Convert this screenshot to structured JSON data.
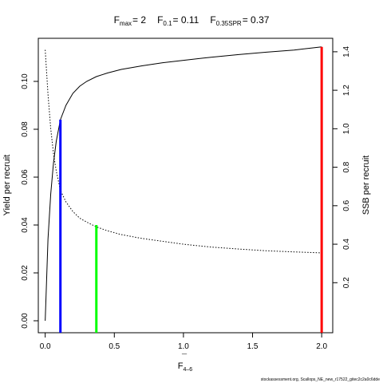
{
  "chart_data": {
    "type": "line",
    "title": {
      "fmax_label": "F",
      "fmax_sub": "max",
      "fmax_value": "= 2",
      "f01_label": "F",
      "f01_sub": "0.1",
      "f01_value": "= 0.11",
      "fspr_label": "F",
      "fspr_sub": "0.35SPR",
      "fspr_value": "= 0.37"
    },
    "xlabel": "F",
    "xlabel_bar": "¯",
    "xlabel_sub": "4–6",
    "ylabel": "Yield per recruit",
    "y2label": "SSB per recruit",
    "xlim": [
      -0.05,
      2.08
    ],
    "ylim": [
      -0.005,
      0.118
    ],
    "y2lim": [
      -0.06,
      1.47
    ],
    "x_ticks": [
      0.0,
      0.5,
      1.0,
      1.5,
      2.0
    ],
    "x_tick_labels": [
      "0.0",
      "0.5",
      "1.0",
      "1.5",
      "2.0"
    ],
    "y_ticks": [
      0.0,
      0.02,
      0.04,
      0.06,
      0.08,
      0.1
    ],
    "y_tick_labels": [
      "0.00",
      "0.02",
      "0.04",
      "0.06",
      "0.08",
      "0.10"
    ],
    "y2_ticks": [
      0.2,
      0.4,
      0.6,
      0.8,
      1.0,
      1.2,
      1.4
    ],
    "y2_tick_labels": [
      "0.2",
      "0.4",
      "0.6",
      "0.8",
      "1.0",
      "1.2",
      "1.4"
    ],
    "series": [
      {
        "style": "solid",
        "axis": "left",
        "x": [
          0.0,
          0.02,
          0.04,
          0.06,
          0.08,
          0.11,
          0.15,
          0.2,
          0.25,
          0.3,
          0.37,
          0.45,
          0.55,
          0.7,
          0.85,
          1.0,
          1.2,
          1.4,
          1.6,
          1.8,
          2.0
        ],
        "values": [
          0.0,
          0.034,
          0.053,
          0.066,
          0.075,
          0.084,
          0.09,
          0.095,
          0.098,
          0.1,
          0.102,
          0.1035,
          0.105,
          0.1065,
          0.1078,
          0.1088,
          0.1101,
          0.1112,
          0.1122,
          0.1131,
          0.1144
        ]
      },
      {
        "style": "dotted",
        "axis": "right",
        "x": [
          0.0,
          0.02,
          0.04,
          0.06,
          0.08,
          0.11,
          0.15,
          0.2,
          0.25,
          0.3,
          0.37,
          0.45,
          0.55,
          0.7,
          0.85,
          1.0,
          1.2,
          1.4,
          1.6,
          1.8,
          2.0
        ],
        "values": [
          1.41,
          1.18,
          1.0,
          0.87,
          0.78,
          0.68,
          0.62,
          0.57,
          0.535,
          0.515,
          0.49,
          0.47,
          0.45,
          0.43,
          0.415,
          0.4,
          0.385,
          0.375,
          0.366,
          0.36,
          0.355
        ]
      }
    ],
    "reference_lines": [
      {
        "x": 0.11,
        "y_top": 0.084,
        "color": "#0000ff"
      },
      {
        "x": 0.37,
        "y_top": 0.04,
        "color": "#00ff00"
      },
      {
        "x": 2.0,
        "y_top": 0.1144,
        "color": "#ff0000"
      }
    ]
  },
  "footer": {
    "source": "stockassessment.org, Scallops_NE_new_r17522_gitec2c2a0c6dde"
  }
}
